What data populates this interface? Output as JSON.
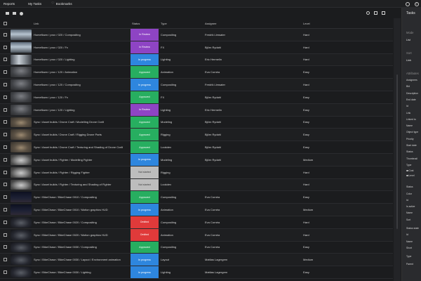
{
  "topbar": {
    "nav": [
      "Reports",
      "My Tasks",
      "Bookmarks"
    ]
  },
  "table": {
    "columns": {
      "link": "Link",
      "status": "Status",
      "type": "Type",
      "assignee": "Assignee",
      "level": "Level"
    },
    "rows": [
      {
        "thumb": "t-room",
        "link": "Homeflown / prox / 020 / Compositing",
        "status": "In Review",
        "status_color": "#8e44c4",
        "type": "Compositing",
        "assignee": "Fredrik Limsater",
        "level": "Hard"
      },
      {
        "thumb": "t-room",
        "link": "Homeflown / prox / 020 / Fx",
        "status": "In Review",
        "status_color": "#8e44c4",
        "type": "FX",
        "assignee": "Björn Rydahl",
        "level": "Hard"
      },
      {
        "thumb": "t-room2",
        "link": "Homeflown / prox / 020 / Lighting",
        "status": "In progress",
        "status_color": "#2e86de",
        "type": "Lighting",
        "assignee": "Eric Hermelin",
        "level": "Hard"
      },
      {
        "thumb": "t-cave",
        "link": "Homeflown / prox / 120 / Animation",
        "status": "Approved",
        "status_color": "#27ae60",
        "type": "Animation",
        "assignee": "Eva Cornéa",
        "level": "Easy"
      },
      {
        "thumb": "t-cave",
        "link": "Homeflown / prox / 120 / Compositing",
        "status": "In progress",
        "status_color": "#2e86de",
        "type": "Compositing",
        "assignee": "Fredrik Limsater",
        "level": "Hard"
      },
      {
        "thumb": "t-cave",
        "link": "Homeflown / prox / 120 / Fx",
        "status": "Approved",
        "status_color": "#27ae60",
        "type": "FX",
        "assignee": "Björn Rydahl",
        "level": "Easy"
      },
      {
        "thumb": "t-cave",
        "link": "Homeflown / prox / 120 / Lighting",
        "status": "In Review",
        "status_color": "#8e44c4",
        "type": "Lighting",
        "assignee": "Eric Hermelin",
        "level": "Easy"
      },
      {
        "thumb": "t-drone",
        "link": "Sync / Asset builds / Drone Craft / Modelling Drone Craft",
        "status": "Approved",
        "status_color": "#27ae60",
        "type": "Modeling",
        "assignee": "Björn Rydahl",
        "level": "Easy"
      },
      {
        "thumb": "t-drone",
        "link": "Sync / Asset builds / Drone Craft / Rigging Drone Parts",
        "status": "Approved",
        "status_color": "#27ae60",
        "type": "Rigging",
        "assignee": "Björn Rydahl",
        "level": "Easy"
      },
      {
        "thumb": "t-drone",
        "link": "Sync / Asset builds / Drone Craft / Texturing and Shading of Drone Craft",
        "status": "Approved",
        "status_color": "#27ae60",
        "type": "Lookdev",
        "assignee": "Björn Rydahl",
        "level": "Easy"
      },
      {
        "thumb": "t-fighter",
        "link": "Sync / Asset builds / Fighter / Modelling Fighter",
        "status": "In progress",
        "status_color": "#2e86de",
        "type": "Modeling",
        "assignee": "Björn Rydahl",
        "level": "Medium"
      },
      {
        "thumb": "t-fighter",
        "link": "Sync / Asset builds / Fighter / Rigging Fighter",
        "status": "Not started",
        "status_color": "#bdbdbd",
        "type": "Rigging",
        "assignee": "",
        "level": "Hard"
      },
      {
        "thumb": "t-fighter",
        "link": "Sync / Asset builds / Fighter / Texturing and Shading of Fighter",
        "status": "Not started",
        "status_color": "#bdbdbd",
        "type": "Lookdev",
        "assignee": "",
        "level": "Hard"
      },
      {
        "thumb": "t-night",
        "link": "Sync / BikeChase / BikeChase 0010 / Compositing",
        "status": "Approved",
        "status_color": "#27ae60",
        "type": "Compositing",
        "assignee": "Eva Cornéa",
        "level": "Easy"
      },
      {
        "thumb": "t-night",
        "link": "Sync / BikeChase / BikeChase 0010 / Motion graphics HUD",
        "status": "In progress",
        "status_color": "#2e86de",
        "type": "Animation",
        "assignee": "Eva Cornéa",
        "level": "Medium"
      },
      {
        "thumb": "t-bike",
        "link": "Sync / BikeChase / BikeChase 0020 / Compositing",
        "status": "Omitted",
        "status_color": "#e03a3a",
        "type": "Compositing",
        "assignee": "Eva Cornéa",
        "level": "Hard"
      },
      {
        "thumb": "t-bike",
        "link": "Sync / BikeChase / BikeChase 0020 / Motion graphics HUD",
        "status": "Omitted",
        "status_color": "#e03a3a",
        "type": "Animation",
        "assignee": "Eva Cornéa",
        "level": "Hard"
      },
      {
        "thumb": "t-bike",
        "link": "Sync / BikeChase / BikeChase 0030 / Compositing",
        "status": "Approved",
        "status_color": "#27ae60",
        "type": "Compositing",
        "assignee": "Eva Cornéa",
        "level": "Easy"
      },
      {
        "thumb": "t-bike",
        "link": "Sync / BikeChase / BikeChase 0030 / Layout / Environment animation",
        "status": "In progress",
        "status_color": "#2e86de",
        "type": "Layout",
        "assignee": "Mattias Lagergren",
        "level": "Medium"
      },
      {
        "thumb": "t-bike",
        "link": "Sync / BikeChase / BikeChase 0030 / Lighting",
        "status": "In progress",
        "status_color": "#2e86de",
        "type": "Lighting",
        "assignee": "Mattias Lagergren",
        "level": "Easy"
      }
    ]
  },
  "sidebar": {
    "title": "Tasks",
    "mode_label": "Mode",
    "mode_value": "List",
    "sort_label": "Sort",
    "sort_value": "Link",
    "attributes_label": "Attributes",
    "attributes": [
      "Assignees",
      "Bid",
      "Description",
      "End date",
      "Id",
      "Link",
      "Linked to",
      "Name",
      "Object type",
      "Priority",
      "Start date",
      "Status",
      "Thumbnail",
      "Type"
    ],
    "type_options": [
      "Cost",
      "Level"
    ],
    "group2": [
      "Status",
      "Color",
      "Id",
      "Is active",
      "Name",
      "Sort"
    ],
    "group3": [
      "Status state",
      "Id",
      "Name",
      "Short"
    ],
    "group4": [
      "Type",
      "Parent"
    ]
  }
}
